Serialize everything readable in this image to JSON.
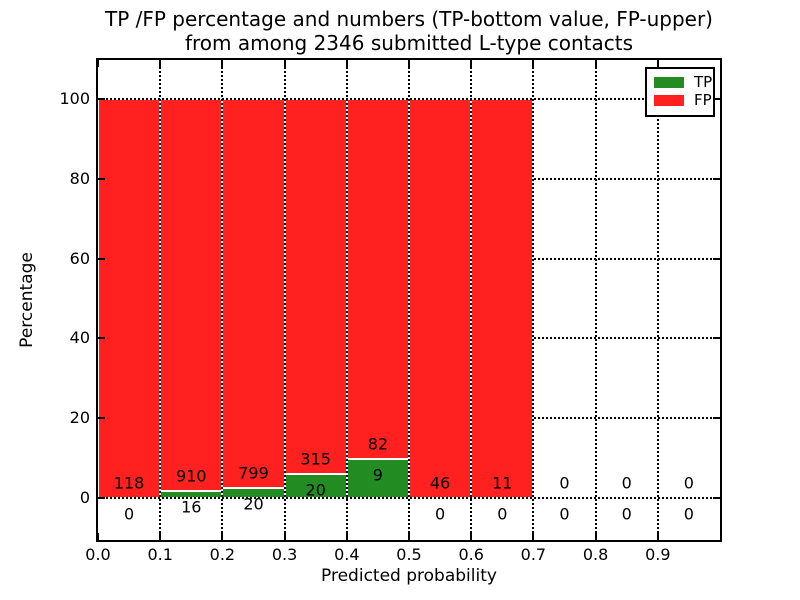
{
  "title": {
    "line1": "TP /FP percentage and numbers (TP-bottom value, FP-upper)",
    "line2": "from among 2346 submitted L-type contacts"
  },
  "axes": {
    "xlabel": "Predicted probability",
    "ylabel": "Percentage",
    "x_tick_labels": [
      "0.0",
      "0.1",
      "0.2",
      "0.3",
      "0.4",
      "0.5",
      "0.6",
      "0.7",
      "0.8",
      "0.9"
    ],
    "y_tick_labels": [
      "0",
      "20",
      "40",
      "60",
      "80",
      "100"
    ]
  },
  "legend": {
    "items": [
      {
        "label": "TP",
        "color": "#228b22"
      },
      {
        "label": "FP",
        "color": "#ff2020"
      }
    ]
  },
  "colors": {
    "tp": "#228b22",
    "fp": "#ff2020",
    "grid": "#000000",
    "bar_edge": "#ffffff"
  },
  "chart_data": {
    "type": "bar",
    "stacked": true,
    "title": "TP /FP percentage and numbers (TP-bottom value, FP-upper) from among 2346 submitted L-type contacts",
    "xlabel": "Predicted probability",
    "ylabel": "Percentage",
    "total_contacts": 2346,
    "bin_width": 0.1,
    "categories": [
      0.0,
      0.1,
      0.2,
      0.3,
      0.4,
      0.5,
      0.6,
      0.7,
      0.8,
      0.9
    ],
    "x_tick_values": [
      0.0,
      0.1,
      0.2,
      0.3,
      0.4,
      0.5,
      0.6,
      0.7,
      0.8,
      0.9
    ],
    "y_tick_values": [
      0,
      20,
      40,
      60,
      80,
      100
    ],
    "xlim": [
      0.0,
      1.0
    ],
    "ylim": [
      -10.5,
      110.2
    ],
    "grid": "dotted-black",
    "legend_position": "upper right",
    "series": [
      {
        "name": "TP",
        "color": "#228b22",
        "counts": [
          0,
          16,
          20,
          20,
          9,
          0,
          0,
          0,
          0,
          0
        ],
        "pct": [
          0,
          1.73,
          2.44,
          5.97,
          9.89,
          0,
          0,
          0,
          0,
          0
        ]
      },
      {
        "name": "FP",
        "color": "#ff2020",
        "counts": [
          118,
          910,
          799,
          315,
          82,
          46,
          11,
          0,
          0,
          0
        ],
        "pct": [
          100,
          98.27,
          97.56,
          94.03,
          90.11,
          100,
          100,
          0,
          0,
          0
        ]
      }
    ]
  }
}
